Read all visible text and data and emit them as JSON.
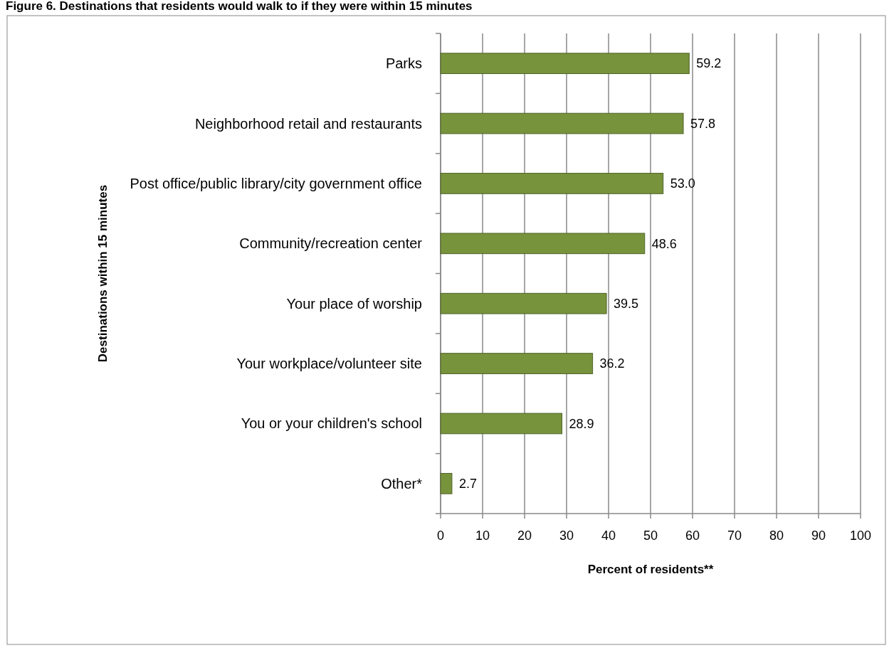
{
  "chart_data": {
    "type": "bar",
    "orientation": "horizontal",
    "title": "Figure 6. Destinations that residents would walk to if they were within 15 minutes",
    "xlabel": "Percent of residents**",
    "ylabel": "Destinations within 15 minutes",
    "categories": [
      "Parks",
      "Neighborhood retail and restaurants",
      "Post office/public library/city government office",
      "Community/recreation center",
      "Your place of worship",
      "Your workplace/volunteer site",
      "You or your children's school",
      "Other*"
    ],
    "values": [
      59.2,
      57.8,
      53.0,
      48.6,
      39.5,
      36.2,
      28.9,
      2.7
    ],
    "value_labels": [
      "59.2",
      "57.8",
      "53.0",
      "48.6",
      "39.5",
      "36.2",
      "28.9",
      "2.7"
    ],
    "color": "#77933c",
    "xlim": [
      0,
      100
    ],
    "xticks": [
      0,
      10,
      20,
      30,
      40,
      50,
      60,
      70,
      80,
      90,
      100
    ],
    "grid": "x"
  }
}
